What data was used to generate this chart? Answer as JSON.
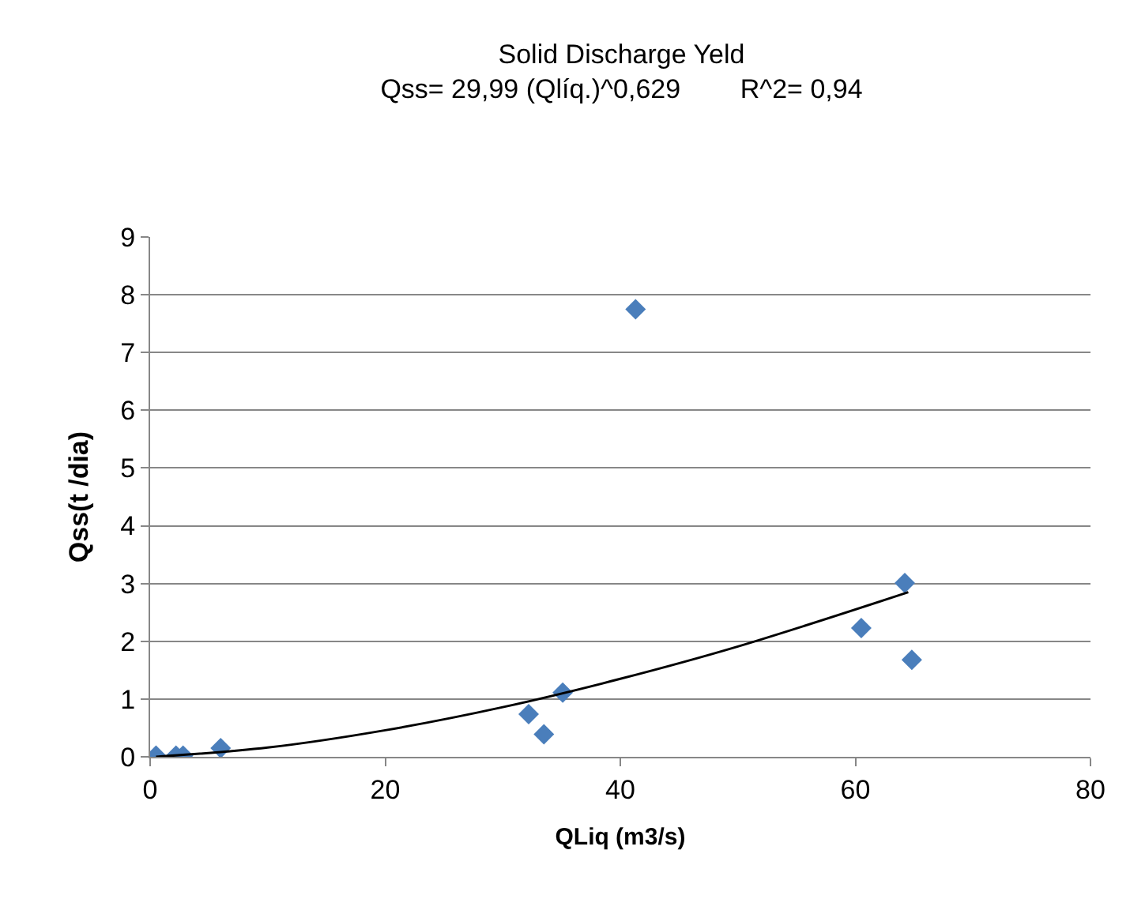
{
  "chart_data": {
    "type": "scatter",
    "title": "Solid Discharge Yeld",
    "subtitle": "Qss= 29,99 (Qlíq.)^0,629        R^2= 0,94",
    "xlabel": "QLiq (m3/s)",
    "ylabel": "Qss(t /dia)",
    "series": [
      {
        "color": "#4a7ebb",
        "marker": "diamond",
        "x": [
          0.5,
          2.2,
          2.8,
          6.0,
          32.2,
          33.5,
          35.1,
          41.3,
          60.5,
          64.2,
          64.8
        ],
        "values": [
          0.02,
          0.02,
          0.02,
          0.15,
          0.74,
          0.39,
          1.11,
          7.75,
          2.23,
          3.01,
          1.68
        ]
      },
      {
        "type": "line",
        "color": "#000000",
        "marker": "none",
        "x": [
          0.5,
          10,
          20,
          30,
          40,
          50,
          64.5
        ],
        "values": [
          0.0,
          0.16,
          0.46,
          0.86,
          1.35,
          1.91,
          2.85
        ]
      }
    ],
    "xlim": [
      0,
      80
    ],
    "xticks": [
      0,
      20,
      40,
      60,
      80
    ],
    "ylim": [
      0,
      9
    ],
    "yticks": [
      0,
      1,
      2,
      3,
      4,
      5,
      6,
      7,
      8,
      9
    ],
    "grid": "y",
    "legend": false
  }
}
